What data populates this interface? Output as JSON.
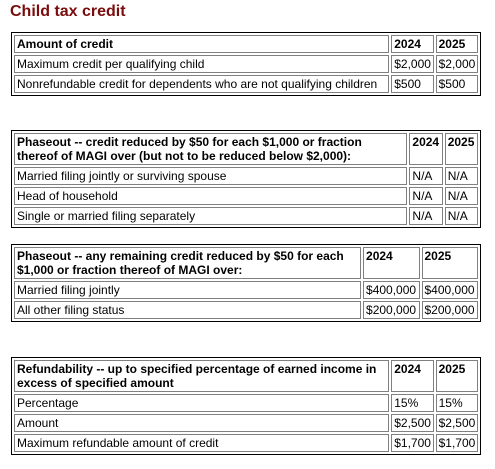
{
  "title": "Child tax credit",
  "t1": {
    "header": [
      "Amount of credit",
      "2024",
      "2025"
    ],
    "rows": [
      [
        "Maximum credit per qualifying child",
        "$2,000",
        "$2,000"
      ],
      [
        "Nonrefundable credit for dependents who are not qualifying children",
        "$500",
        "$500"
      ]
    ]
  },
  "t2": {
    "header": [
      "Phaseout -- credit reduced by $50 for each $1,000 or fraction thereof of MAGI over (but not to be reduced below $2,000):",
      "2024",
      "2025"
    ],
    "rows": [
      [
        "Married filing jointly or surviving spouse",
        "N/A",
        "N/A"
      ],
      [
        "Head of household",
        "N/A",
        "N/A"
      ],
      [
        "Single or married filing separately",
        "N/A",
        "N/A"
      ]
    ]
  },
  "t3": {
    "header": [
      "Phaseout -- any remaining credit reduced by $50 for each $1,000 or fraction thereof of MAGI over:",
      "2024",
      "2025"
    ],
    "rows": [
      [
        "Married filing jointly",
        "$400,000",
        "$400,000"
      ],
      [
        "All other filing status",
        "$200,000",
        "$200,000"
      ]
    ]
  },
  "t4": {
    "header": [
      "Refundability -- up to specified percentage of earned income in excess of specified amount",
      "2024",
      "2025"
    ],
    "rows": [
      [
        "Percentage",
        "15%",
        "15%"
      ],
      [
        "Amount",
        "$2,500",
        "$2,500"
      ],
      [
        "Maximum refundable amount of credit",
        "$1,700",
        "$1,700"
      ]
    ]
  }
}
